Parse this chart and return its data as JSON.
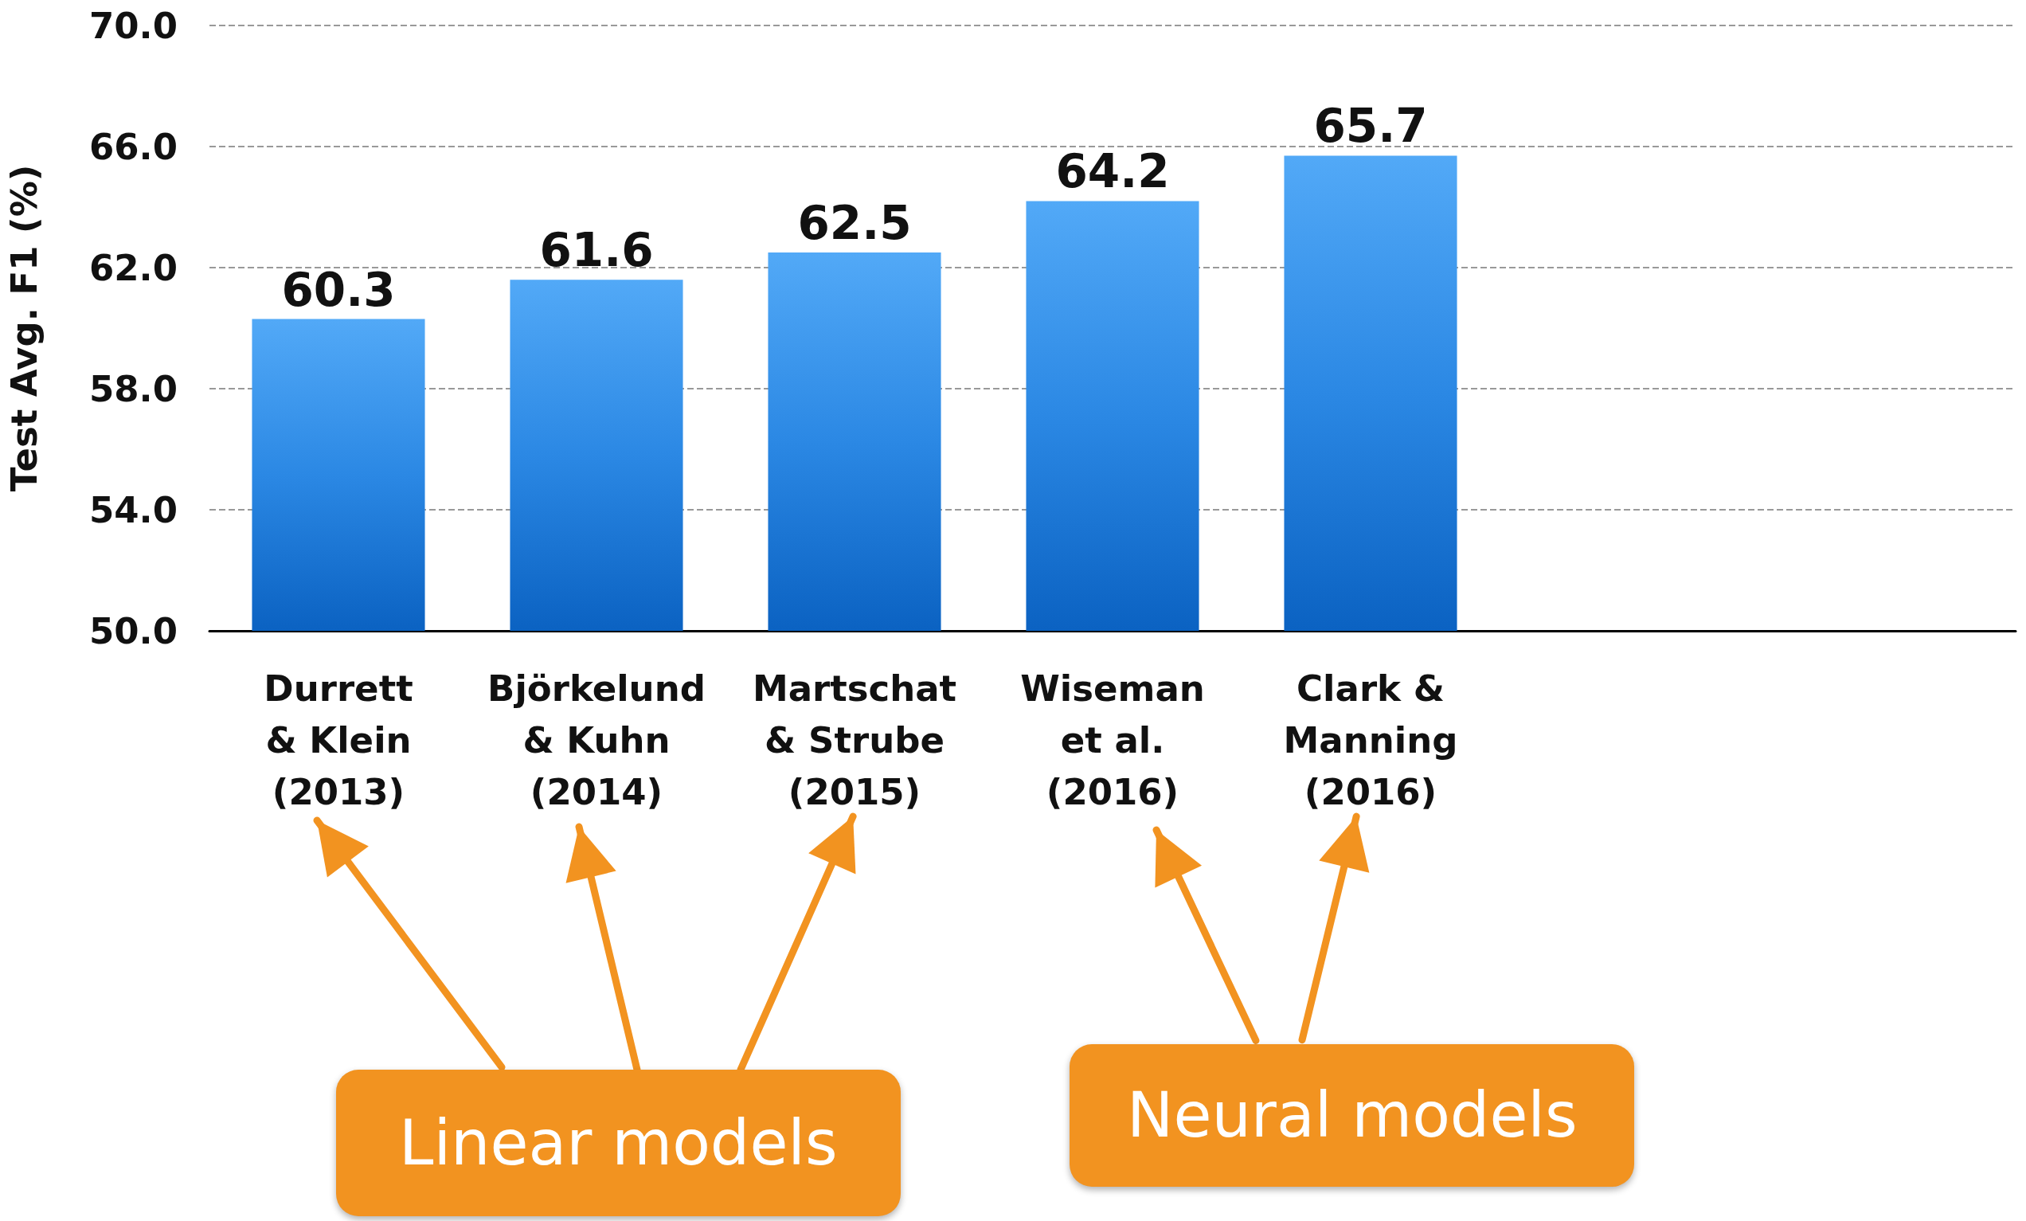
{
  "chart_data": {
    "type": "bar",
    "ylabel": "Test Avg. F1 (%)",
    "categories": [
      "Durrett\n& Klein\n(2013)",
      "Björkelund\n& Kuhn\n(2014)",
      "Martschat\n& Strube\n(2015)",
      "Wiseman\net al.\n(2016)",
      "Clark &\nManning\n(2016)",
      null,
      null
    ],
    "values": [
      60.3,
      61.6,
      62.5,
      64.2,
      65.7,
      null,
      null
    ],
    "color": "#2b88e4",
    "ylim": [
      50,
      70
    ],
    "yticks": [
      {
        "value": 50,
        "label": "50.0"
      },
      {
        "value": 54,
        "label": "54.0"
      },
      {
        "value": 58,
        "label": "58.0"
      },
      {
        "value": 62,
        "label": "62.0"
      },
      {
        "value": 66,
        "label": "66.0"
      },
      {
        "value": 70,
        "label": "70.0"
      }
    ],
    "grid": "y",
    "data_labels": true,
    "annotations": [
      "Linear models",
      "Neural models"
    ]
  }
}
